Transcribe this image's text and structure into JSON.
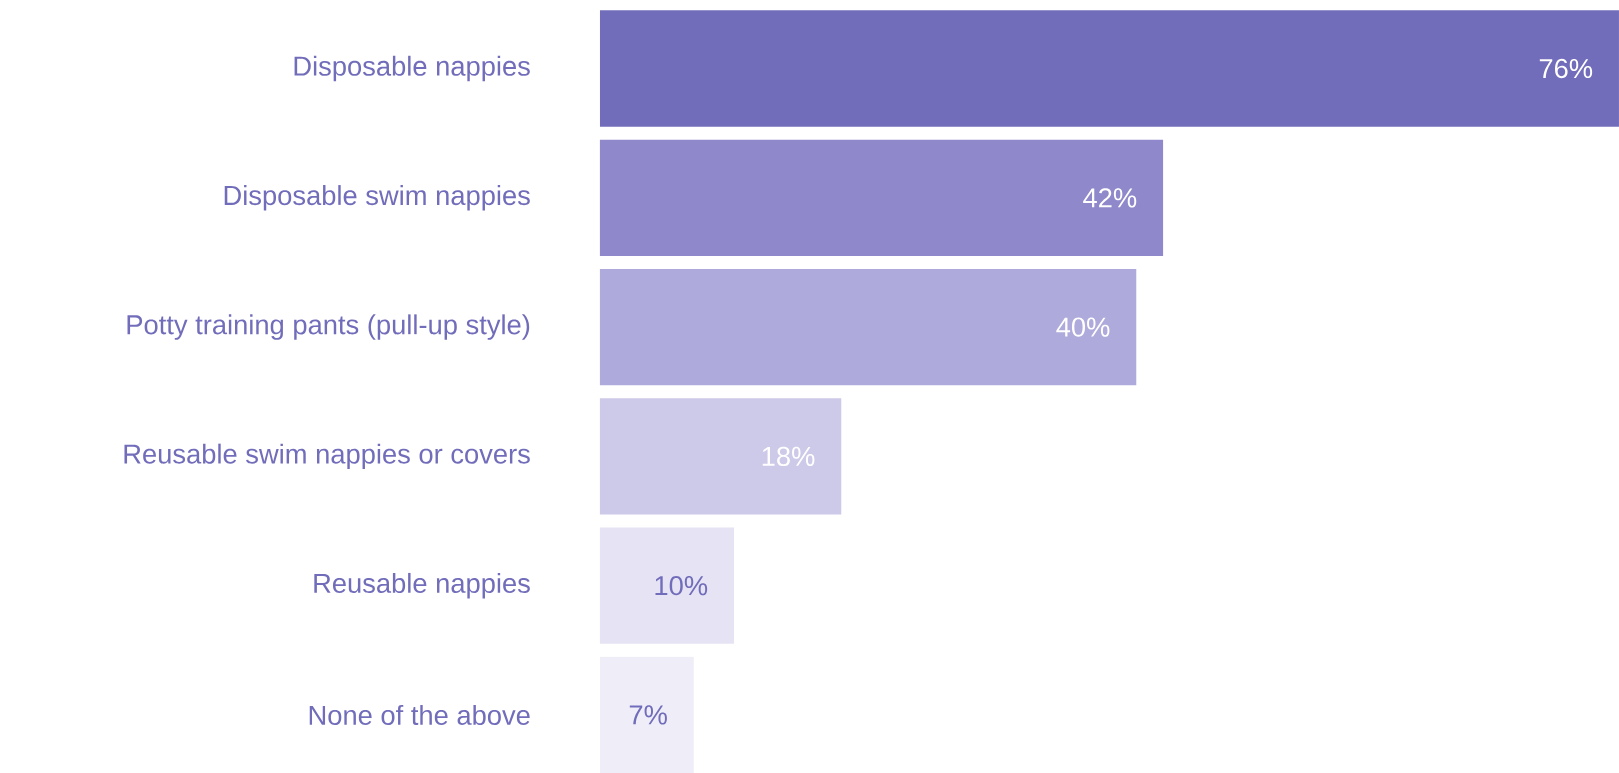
{
  "chart_data": {
    "type": "bar",
    "orientation": "horizontal",
    "categories": [
      "Disposable nappies",
      "Disposable swim nappies",
      "Potty training pants (pull-up style)",
      "Reusable swim nappies or covers",
      "Reusable nappies",
      "None of the above"
    ],
    "values": [
      76,
      42,
      40,
      18,
      10,
      7
    ],
    "value_labels": [
      "76%",
      "42%",
      "40%",
      "18%",
      "10%",
      "7%"
    ],
    "colors": [
      "#716dba",
      "#8f89cb",
      "#aeaadb",
      "#cdc9e9",
      "#e5e3f4",
      "#efeef8"
    ]
  }
}
